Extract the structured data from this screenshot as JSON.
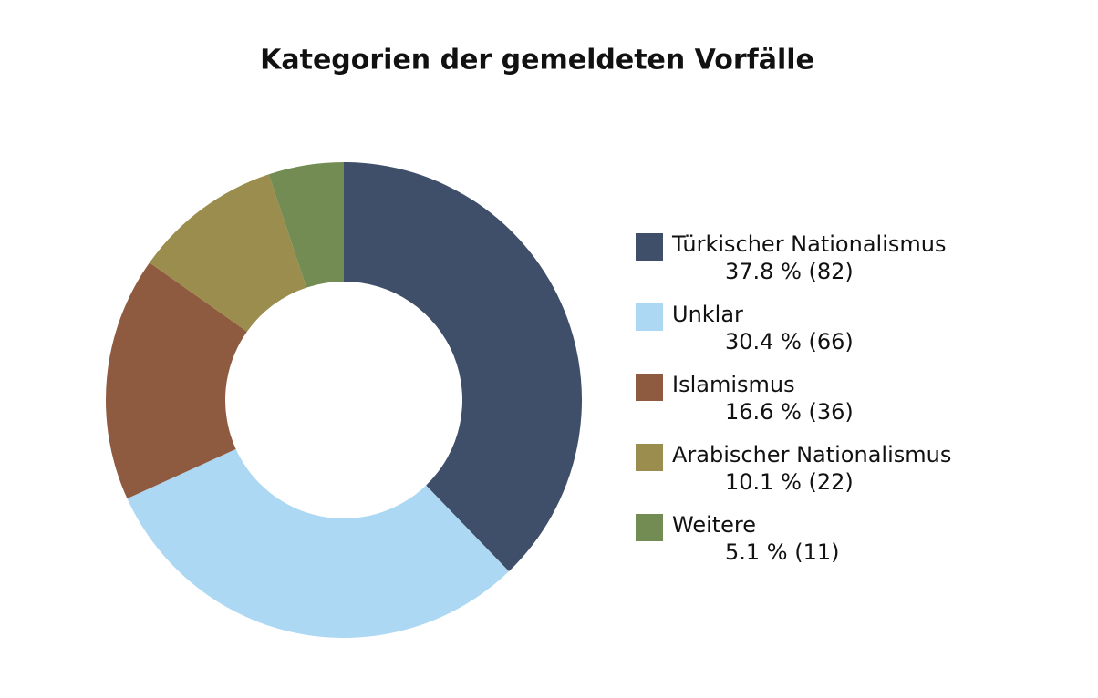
{
  "chart_data": {
    "type": "donut",
    "title": "Kategorien der gemeldeten Vorfälle",
    "categories": [
      "Türkischer Nationalismus",
      "Unklar",
      "Islamismus",
      "Arabischer Nationalismus",
      "Weitere"
    ],
    "values": [
      37.8,
      30.4,
      16.6,
      10.1,
      5.1
    ],
    "value_labels": [
      "37.8 % (82)",
      "30.4 % (66)",
      "16.6 % (36)",
      "10.1 % (22)",
      "5.1 % (11)"
    ],
    "colors": [
      "#3f4e69",
      "#add8f3",
      "#8f5b40",
      "#9b8d4e",
      "#728c53"
    ],
    "legend": "right"
  }
}
